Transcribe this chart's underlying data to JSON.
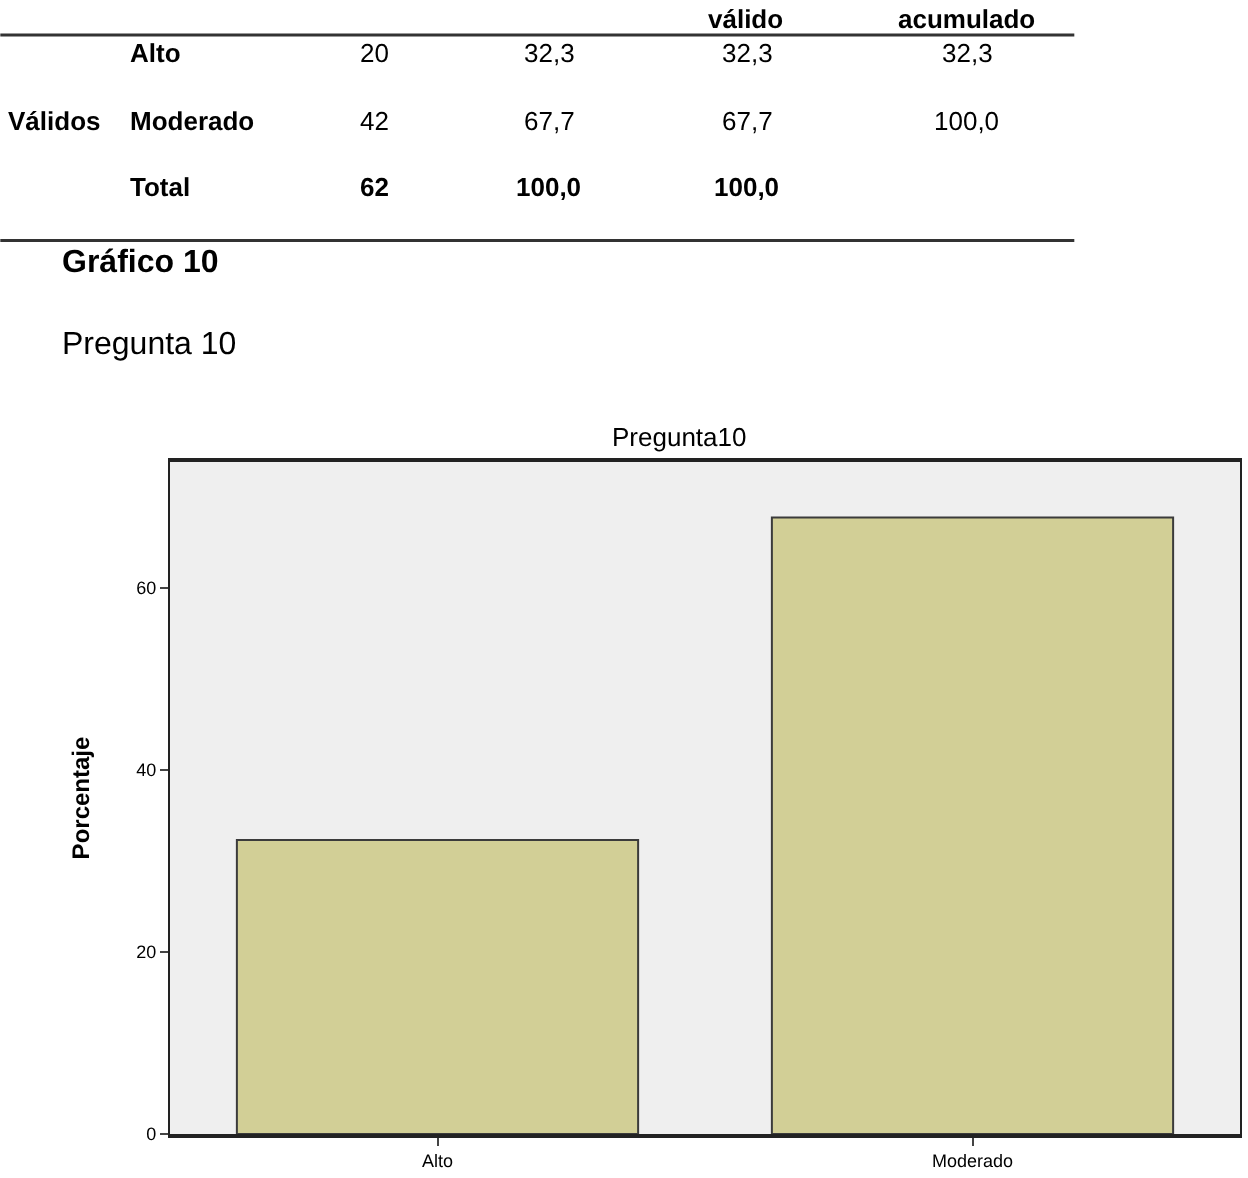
{
  "chart_data": {
    "type": "bar",
    "title": "Pregunta10",
    "ylabel": "Porcentaje",
    "categories": [
      "Alto",
      "Moderado"
    ],
    "values": [
      32.3,
      67.7
    ],
    "color": "#d2cf96",
    "ylim": [
      0,
      73.8
    ],
    "yticks": [
      0,
      20,
      40,
      60
    ],
    "grid": false,
    "legend": false,
    "annotations": [
      "válido",
      "acumulado",
      "Alto",
      "20",
      "32,3",
      "32,3",
      "32,3",
      "Válidos",
      "Moderado",
      "42",
      "67,7",
      "67,7",
      "100,0",
      "Total",
      "62",
      "100,0",
      "100,0",
      "Gráfico 10",
      "Pregunta 10"
    ]
  }
}
